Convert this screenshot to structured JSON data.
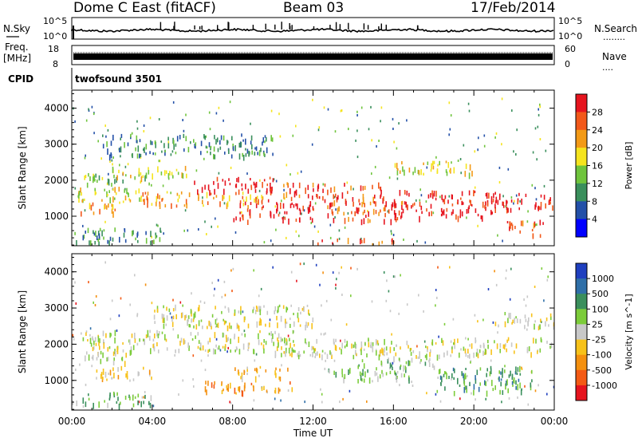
{
  "header": {
    "station": "Dome C East (fitACF)",
    "beam": "Beam 03",
    "date": "17/Feb/2014"
  },
  "left_labels": {
    "nsky": "N.Sky",
    "freq_line1": "Freq.",
    "freq_line2": "[MHz]",
    "cpid": "CPID"
  },
  "right_labels": {
    "nsearch": "N.Search",
    "nave": "Nave",
    "dots1": "........",
    "dots2": "...."
  },
  "top_panels": {
    "noise_ticks_left": [
      "10^5",
      "10^0"
    ],
    "noise_ticks_right": [
      "10^5",
      "10^0"
    ],
    "freq_ticks_left": [
      "18",
      "8"
    ],
    "nave_ticks_right": [
      "60",
      "0"
    ],
    "cpid_text": "twofsound 3501"
  },
  "chart_data": [
    {
      "type": "heatmap",
      "name": "power",
      "ylabel": "Slant Range [km]",
      "ylim": [
        180,
        4500
      ],
      "yticks": [
        "1000",
        "2000",
        "3000",
        "4000"
      ],
      "xlim": [
        0,
        24
      ],
      "colorbar": {
        "label": "Power [dB]",
        "ticks": [
          "4",
          "8",
          "12",
          "16",
          "20",
          "24",
          "28"
        ],
        "colors": [
          "#0000ff",
          "#2350a8",
          "#3a8f5c",
          "#6fc43c",
          "#f5e41e",
          "#f39a16",
          "#f2581a",
          "#e6141e"
        ]
      },
      "bands": [
        {
          "t0": 0.3,
          "t1": 3.6,
          "r0": 1450,
          "r1": 1850,
          "level": 4
        },
        {
          "t0": 0.5,
          "t1": 4.0,
          "r0": 1900,
          "r1": 2200,
          "level": 3
        },
        {
          "t0": 0.4,
          "t1": 2.5,
          "r0": 1100,
          "r1": 1400,
          "level": 5
        },
        {
          "t0": 2.0,
          "t1": 6.0,
          "r0": 2100,
          "r1": 2400,
          "level": 4
        },
        {
          "t0": 3.5,
          "t1": 9.5,
          "r0": 1300,
          "r1": 1700,
          "level": 5
        },
        {
          "t0": 6.0,
          "t1": 10.5,
          "r0": 1700,
          "r1": 2100,
          "level": 7
        },
        {
          "t0": 8.0,
          "t1": 12.0,
          "r0": 900,
          "r1": 1500,
          "level": 7
        },
        {
          "t0": 10.5,
          "t1": 15.5,
          "r0": 1500,
          "r1": 1950,
          "level": 6
        },
        {
          "t0": 12.5,
          "t1": 16.5,
          "r0": 900,
          "r1": 1500,
          "level": 6
        },
        {
          "t0": 16.0,
          "t1": 21.0,
          "r0": 1000,
          "r1": 1750,
          "level": 7
        },
        {
          "t0": 20.5,
          "t1": 23.9,
          "r0": 1200,
          "r1": 1700,
          "level": 7
        },
        {
          "t0": 0.0,
          "t1": 4.5,
          "r0": 300,
          "r1": 700,
          "level": 2
        },
        {
          "t0": 12.0,
          "t1": 16.0,
          "r0": 250,
          "r1": 400,
          "level": 6
        },
        {
          "t0": 1.5,
          "t1": 10.0,
          "r0": 2700,
          "r1": 3300,
          "level": 2
        },
        {
          "t0": 16.0,
          "t1": 20.0,
          "r0": 2200,
          "r1": 2600,
          "level": 4
        },
        {
          "t0": 21.5,
          "t1": 23.5,
          "r0": 500,
          "r1": 900,
          "level": 6
        }
      ]
    },
    {
      "type": "heatmap",
      "name": "velocity",
      "ylabel": "Slant Range [km]",
      "ylim": [
        180,
        4500
      ],
      "yticks": [
        "1000",
        "2000",
        "3000",
        "4000"
      ],
      "xlim": [
        0,
        24
      ],
      "xticks": [
        "00:00",
        "04:00",
        "08:00",
        "12:00",
        "16:00",
        "20:00",
        "00:00"
      ],
      "xlabel": "Time UT",
      "colorbar": {
        "label": "Velocity [m s^-1]",
        "ticks": [
          "1000",
          "500",
          "100",
          "25",
          "-25",
          "-100",
          "-500",
          "-1000"
        ],
        "colors": [
          "#1f3fbf",
          "#2f6fa8",
          "#3a8f5c",
          "#7ccc3a",
          "#c8c8c8",
          "#f7c21a",
          "#f4900f",
          "#f45a14",
          "#e6141e"
        ]
      },
      "bands": [
        {
          "t0": 0.5,
          "t1": 11.0,
          "r0": 1850,
          "r1": 2400,
          "level": 4
        },
        {
          "t0": 4.0,
          "t1": 12.0,
          "r0": 2500,
          "r1": 3100,
          "level": 4
        },
        {
          "t0": 10.0,
          "t1": 24.0,
          "r0": 1700,
          "r1": 2200,
          "level": 4
        },
        {
          "t0": 0.5,
          "t1": 3.0,
          "r0": 1500,
          "r1": 1850,
          "level": 4
        },
        {
          "t0": 6.5,
          "t1": 11.0,
          "r0": 700,
          "r1": 1000,
          "level": 6
        },
        {
          "t0": 1.0,
          "t1": 4.0,
          "r0": 1050,
          "r1": 1400,
          "level": 5
        },
        {
          "t0": 12.5,
          "t1": 17.0,
          "r0": 1000,
          "r1": 1400,
          "level": 3
        },
        {
          "t0": 18.0,
          "t1": 23.0,
          "r0": 700,
          "r1": 1400,
          "level": 2
        },
        {
          "t0": 0.0,
          "t1": 4.0,
          "r0": 350,
          "r1": 700,
          "level": 3
        },
        {
          "t0": 14.0,
          "t1": 18.0,
          "r0": 1400,
          "r1": 1700,
          "level": 3
        },
        {
          "t0": 21.0,
          "t1": 24.0,
          "r0": 2500,
          "r1": 2900,
          "level": 4
        },
        {
          "t0": 8.0,
          "t1": 11.0,
          "r0": 1100,
          "r1": 1400,
          "level": 5
        }
      ]
    }
  ]
}
